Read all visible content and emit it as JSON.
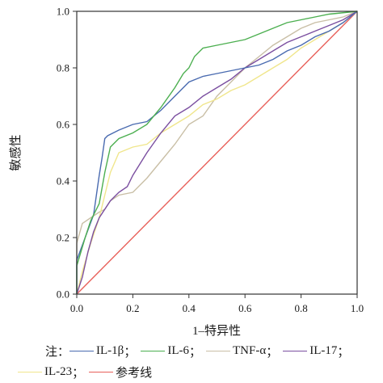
{
  "chart_data": {
    "type": "line",
    "title": "",
    "xlabel": "1–特异性",
    "ylabel": "敏感性",
    "xlim": [
      0,
      1
    ],
    "ylim": [
      0,
      1
    ],
    "x_ticks": [
      "0.0",
      "0.2",
      "0.4",
      "0.6",
      "0.8",
      "1.0"
    ],
    "y_ticks": [
      "0.0",
      "0.2",
      "0.4",
      "0.6",
      "0.8",
      "1.0"
    ],
    "grid": false,
    "legend_position": "bottom",
    "legend_prefix": "注：",
    "separator": "；",
    "series": [
      {
        "name": "IL-1β",
        "color": "#4a6bb0",
        "x": [
          0,
          0,
          0.03,
          0.06,
          0.08,
          0.09,
          0.1,
          0.11,
          0.15,
          0.2,
          0.25,
          0.3,
          0.35,
          0.4,
          0.45,
          0.5,
          0.55,
          0.6,
          0.65,
          0.7,
          0.75,
          0.8,
          0.85,
          0.9,
          0.95,
          1.0
        ],
        "y": [
          0,
          0.12,
          0.2,
          0.28,
          0.42,
          0.48,
          0.55,
          0.56,
          0.58,
          0.6,
          0.61,
          0.65,
          0.7,
          0.75,
          0.77,
          0.78,
          0.79,
          0.8,
          0.81,
          0.83,
          0.86,
          0.88,
          0.91,
          0.93,
          0.96,
          1.0
        ]
      },
      {
        "name": "IL-6",
        "color": "#4caf50",
        "x": [
          0,
          0,
          0.03,
          0.05,
          0.08,
          0.1,
          0.12,
          0.15,
          0.2,
          0.25,
          0.3,
          0.35,
          0.38,
          0.4,
          0.42,
          0.45,
          0.5,
          0.55,
          0.6,
          0.65,
          0.7,
          0.75,
          0.8,
          0.85,
          0.9,
          1.0
        ],
        "y": [
          0,
          0.1,
          0.2,
          0.26,
          0.32,
          0.43,
          0.52,
          0.55,
          0.57,
          0.6,
          0.66,
          0.73,
          0.78,
          0.8,
          0.84,
          0.87,
          0.88,
          0.89,
          0.9,
          0.92,
          0.94,
          0.96,
          0.97,
          0.98,
          0.99,
          1.0
        ]
      },
      {
        "name": "TNF-α",
        "color": "#c9bfa6",
        "x": [
          0,
          0,
          0.02,
          0.05,
          0.08,
          0.1,
          0.12,
          0.15,
          0.2,
          0.25,
          0.3,
          0.35,
          0.4,
          0.45,
          0.5,
          0.55,
          0.6,
          0.65,
          0.7,
          0.75,
          0.8,
          0.85,
          0.9,
          0.95,
          1.0
        ],
        "y": [
          0,
          0.18,
          0.25,
          0.27,
          0.29,
          0.3,
          0.33,
          0.35,
          0.36,
          0.41,
          0.47,
          0.53,
          0.6,
          0.63,
          0.7,
          0.75,
          0.8,
          0.84,
          0.88,
          0.91,
          0.94,
          0.96,
          0.97,
          0.98,
          1.0
        ]
      },
      {
        "name": "IL-17",
        "color": "#7b4fa0",
        "x": [
          0,
          0.02,
          0.04,
          0.06,
          0.08,
          0.1,
          0.12,
          0.15,
          0.18,
          0.2,
          0.25,
          0.3,
          0.35,
          0.4,
          0.45,
          0.5,
          0.55,
          0.6,
          0.65,
          0.7,
          0.75,
          0.8,
          0.85,
          0.9,
          0.95,
          1.0
        ],
        "y": [
          0,
          0.06,
          0.15,
          0.22,
          0.27,
          0.3,
          0.33,
          0.36,
          0.38,
          0.42,
          0.5,
          0.57,
          0.63,
          0.66,
          0.7,
          0.73,
          0.76,
          0.8,
          0.83,
          0.86,
          0.89,
          0.91,
          0.93,
          0.95,
          0.97,
          1.0
        ]
      },
      {
        "name": "IL-23",
        "color": "#f0e68c",
        "x": [
          0,
          0.02,
          0.05,
          0.08,
          0.1,
          0.12,
          0.15,
          0.2,
          0.25,
          0.3,
          0.35,
          0.4,
          0.45,
          0.5,
          0.55,
          0.6,
          0.65,
          0.7,
          0.75,
          0.8,
          0.85,
          0.9,
          0.95,
          1.0
        ],
        "y": [
          0,
          0.08,
          0.18,
          0.27,
          0.35,
          0.43,
          0.5,
          0.52,
          0.53,
          0.57,
          0.6,
          0.63,
          0.67,
          0.69,
          0.72,
          0.74,
          0.77,
          0.8,
          0.83,
          0.87,
          0.9,
          0.93,
          0.96,
          1.0
        ]
      },
      {
        "name": "参考线",
        "color": "#e8605a",
        "x": [
          0,
          1
        ],
        "y": [
          0,
          1
        ]
      }
    ]
  }
}
